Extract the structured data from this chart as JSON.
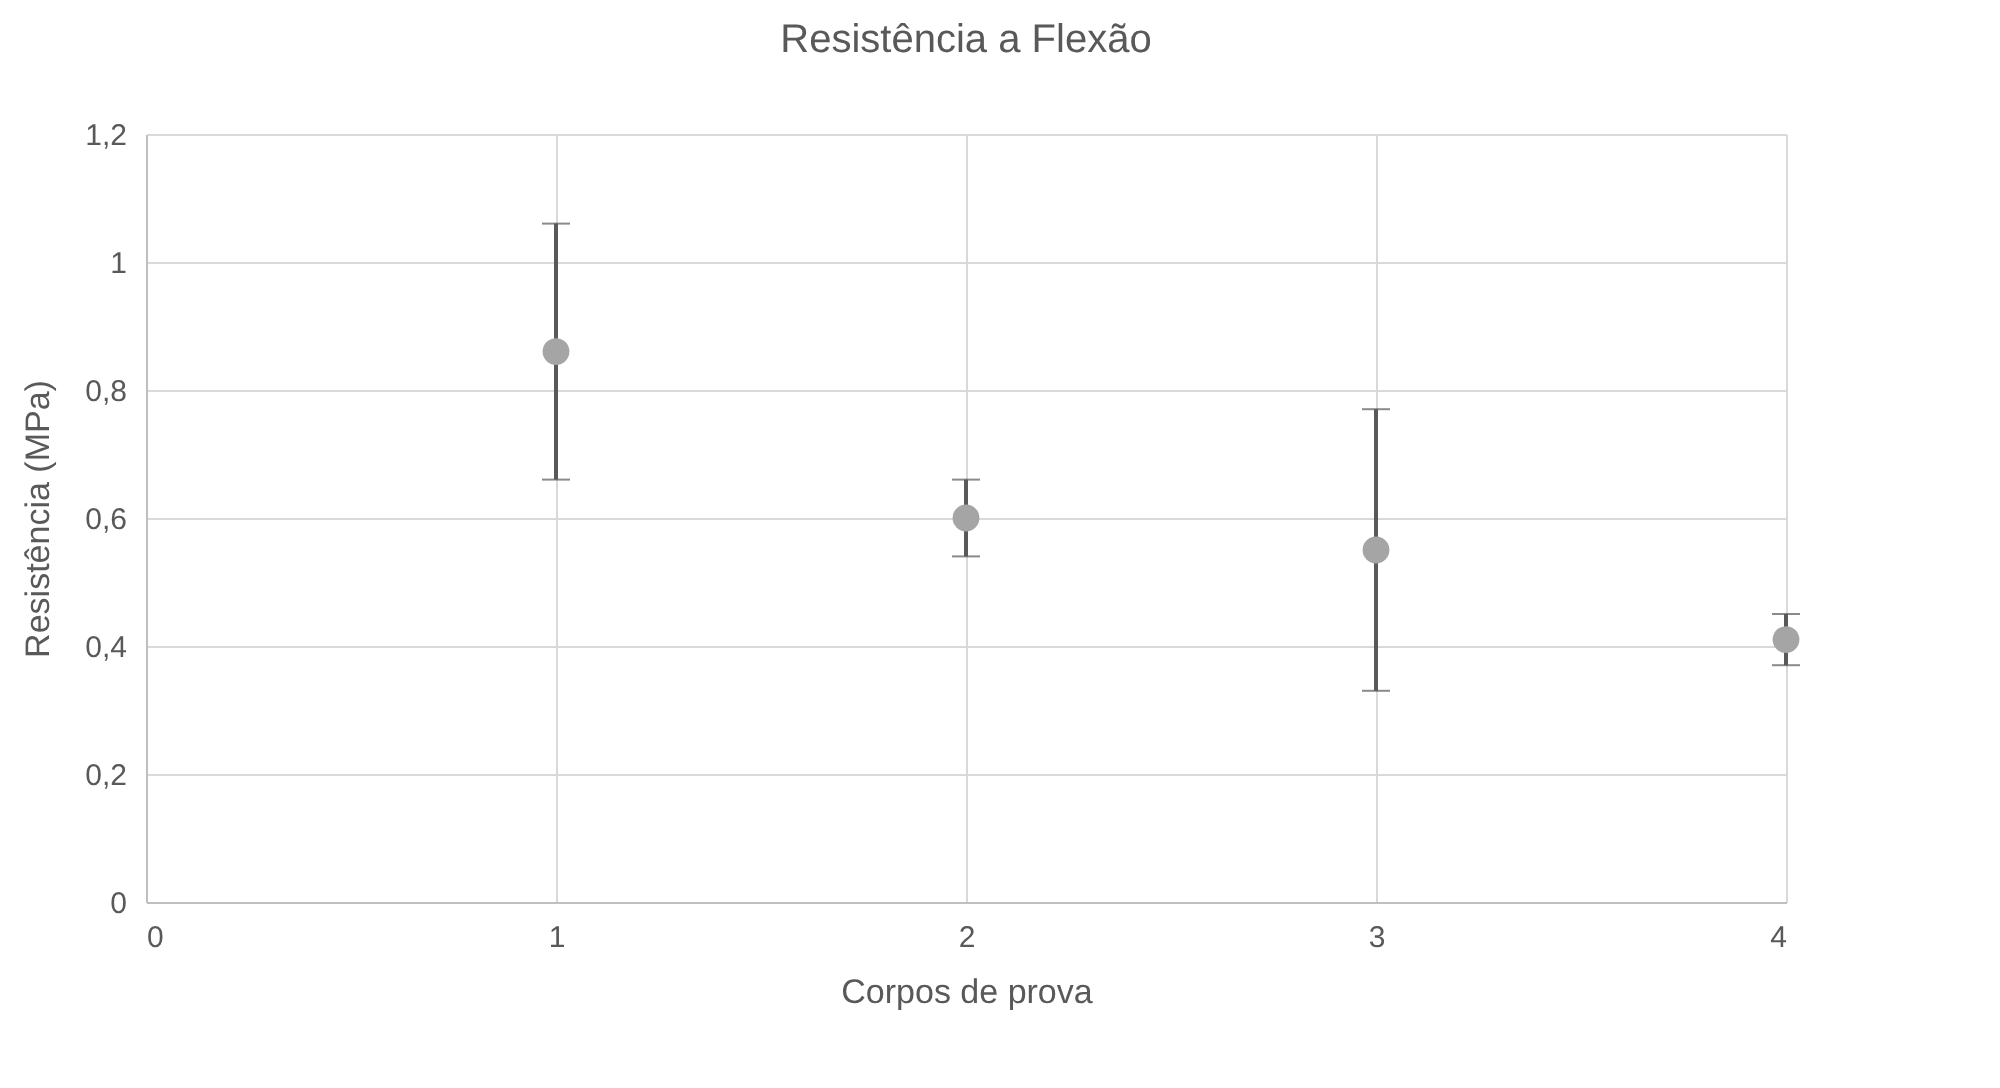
{
  "chart_data": {
    "type": "scatter",
    "title": "Resistência a Flexão",
    "xlabel": "Corpos de prova",
    "ylabel": "Resistência (MPa)",
    "x": [
      1,
      2,
      3,
      4
    ],
    "values": [
      0.86,
      0.6,
      0.55,
      0.41
    ],
    "errors": [
      0.2,
      0.06,
      0.22,
      0.04
    ],
    "color": "#a5a5a5",
    "xlim": [
      0,
      4
    ],
    "xticks": [
      0,
      1,
      2,
      3,
      4
    ],
    "ylim": [
      0,
      1.2
    ],
    "yticks": [
      0,
      {
        "value": 0.2,
        "label": "0,2"
      },
      {
        "value": 0.4,
        "label": "0,4"
      },
      {
        "value": 0.6,
        "label": "0,6"
      },
      {
        "value": 0.8,
        "label": "0,8"
      },
      1,
      {
        "value": 1.2,
        "label": "1,2"
      }
    ],
    "grid": true,
    "marker": "circle"
  }
}
